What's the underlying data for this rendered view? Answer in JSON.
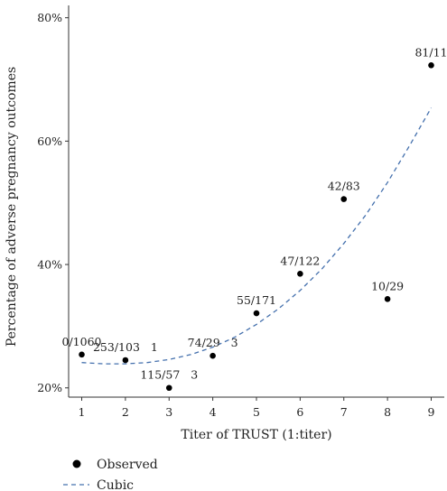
{
  "chart_data": {
    "type": "scatter",
    "xlabel": "Titer of TRUST (1:titer)",
    "ylabel": "Percentage of adverse pregnancy outcomes",
    "xlim": [
      0.7,
      9.3
    ],
    "ylim": [
      18.5,
      82
    ],
    "x_ticks": [
      1,
      2,
      3,
      4,
      5,
      6,
      7,
      8,
      9
    ],
    "x_tick_labels": [
      "1",
      "2",
      "3",
      "4",
      "5",
      "6",
      "7",
      "8",
      "9"
    ],
    "y_ticks": [
      20,
      40,
      60,
      80
    ],
    "y_tick_labels": [
      "20%",
      "40%",
      "60%",
      "80%"
    ],
    "grid": false,
    "legend_position": "bottom-left",
    "series": [
      {
        "name": "Observed",
        "kind": "points",
        "color": "#000000",
        "points": [
          {
            "x": 1,
            "y": 25.4,
            "label": "0/1060"
          },
          {
            "x": 2,
            "y": 24.5,
            "label": "253/103   1"
          },
          {
            "x": 3,
            "y": 20.0,
            "label": "115/57   3"
          },
          {
            "x": 4,
            "y": 25.2,
            "label": "74/29   3"
          },
          {
            "x": 5,
            "y": 32.1,
            "label": "55/171"
          },
          {
            "x": 6,
            "y": 38.5,
            "label": "47/122"
          },
          {
            "x": 7,
            "y": 50.6,
            "label": "42/83"
          },
          {
            "x": 8,
            "y": 34.4,
            "label": "10/29"
          },
          {
            "x": 9,
            "y": 72.3,
            "label": "81/11"
          }
        ]
      },
      {
        "name": "Cubic",
        "kind": "dashed-curve",
        "color": "#4470ad",
        "x": [
          1,
          1.5,
          2,
          2.5,
          3,
          3.5,
          4,
          4.5,
          5,
          5.5,
          6,
          6.5,
          7,
          7.5,
          8,
          8.5,
          9
        ],
        "y": [
          24.1,
          23.9,
          23.9,
          24.1,
          24.6,
          25.4,
          26.6,
          28.2,
          30.3,
          32.8,
          35.8,
          39.3,
          43.4,
          48.0,
          53.3,
          59.2,
          65.4
        ]
      }
    ]
  }
}
